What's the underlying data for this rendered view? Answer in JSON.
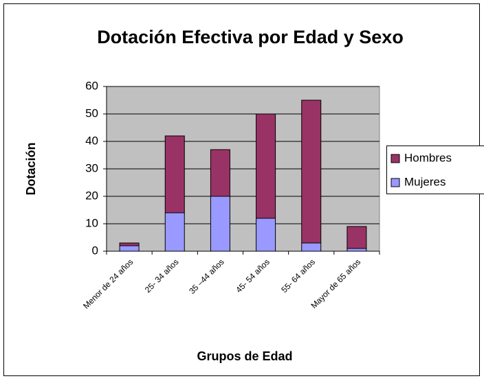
{
  "chart_data": {
    "type": "stacked_bar",
    "title": "Dotación Efectiva por Edad y Sexo",
    "x_label": "Grupos de Edad",
    "y_label": "Dotación",
    "categories": [
      "Menor de 24 años",
      "25- 34 años",
      "35 –44 años",
      "45- 54 años",
      "55- 64 años",
      "Mayor de 65 años"
    ],
    "series": [
      {
        "name": "Mujeres",
        "color": "#9999ff",
        "values": [
          2,
          14,
          20,
          12,
          3,
          1
        ]
      },
      {
        "name": "Hombres",
        "color": "#993366",
        "values": [
          1,
          28,
          17,
          38,
          52,
          8
        ]
      }
    ],
    "ylim": [
      0,
      60
    ],
    "yticks": [
      0,
      10,
      20,
      30,
      40,
      50,
      60
    ],
    "grid": true,
    "legend": "right"
  }
}
